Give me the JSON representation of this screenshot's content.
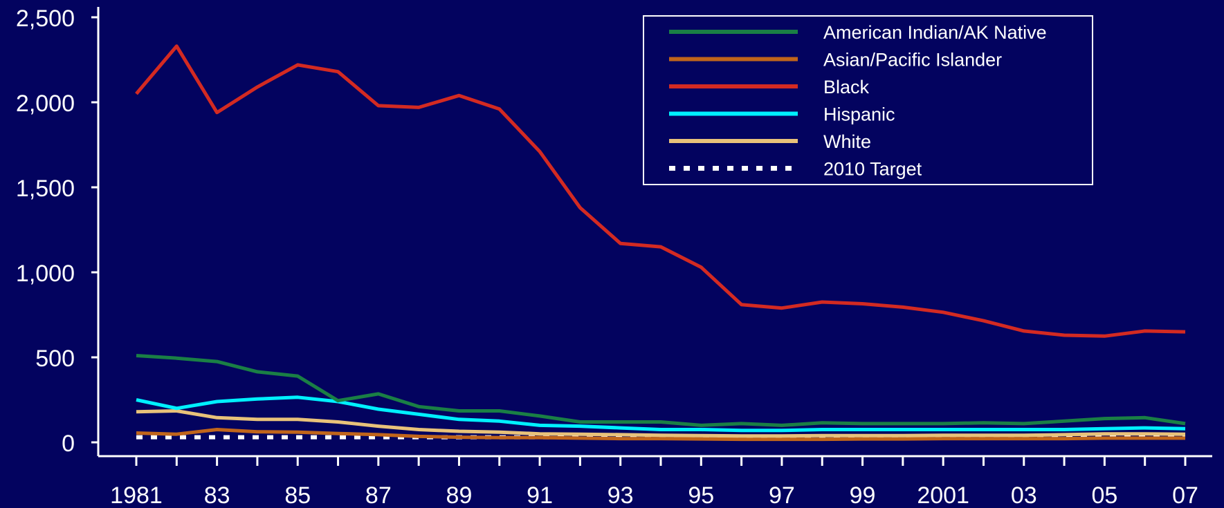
{
  "chart_data": {
    "type": "line",
    "title": "",
    "xlabel": "",
    "ylabel": "",
    "x": [
      1981,
      1982,
      1983,
      1984,
      1985,
      1986,
      1987,
      1988,
      1989,
      1990,
      1991,
      1992,
      1993,
      1994,
      1995,
      1996,
      1997,
      1998,
      1999,
      2000,
      2001,
      2002,
      2003,
      2004,
      2005,
      2006,
      2007
    ],
    "x_tick_labels": [
      "1981",
      "83",
      "85",
      "87",
      "89",
      "91",
      "93",
      "95",
      "97",
      "99",
      "2001",
      "03",
      "05",
      "07"
    ],
    "x_tick_values": [
      1981,
      1983,
      1985,
      1987,
      1989,
      1991,
      1993,
      1995,
      1997,
      1999,
      2001,
      2003,
      2005,
      2007
    ],
    "xlim": [
      1981,
      2007
    ],
    "ylim": [
      0,
      2500
    ],
    "y_ticks": [
      0,
      500,
      1000,
      1500,
      2000,
      2500
    ],
    "y_tick_labels": [
      "0",
      "500",
      "1,000",
      "1,500",
      "2,000",
      "2,500"
    ],
    "grid": false,
    "legend_position": "top-right",
    "series": [
      {
        "name": "American Indian/AK Native",
        "color": "#1a7f45",
        "dash": "solid",
        "values": [
          510,
          495,
          475,
          415,
          390,
          245,
          285,
          210,
          185,
          185,
          155,
          120,
          120,
          120,
          100,
          110,
          100,
          115,
          110,
          110,
          110,
          115,
          110,
          125,
          140,
          145,
          110
        ]
      },
      {
        "name": "Asian/Pacific Islander",
        "color": "#c0651b",
        "dash": "solid",
        "values": [
          55,
          48,
          75,
          62,
          60,
          52,
          45,
          35,
          30,
          28,
          28,
          25,
          22,
          22,
          20,
          18,
          18,
          18,
          20,
          20,
          22,
          22,
          22,
          22,
          25,
          25,
          25
        ]
      },
      {
        "name": "Black",
        "color": "#d32a22",
        "dash": "solid",
        "values": [
          2050,
          2330,
          1940,
          2090,
          2220,
          2180,
          1980,
          1970,
          2040,
          1960,
          1710,
          1380,
          1170,
          1150,
          1030,
          810,
          790,
          825,
          815,
          795,
          765,
          715,
          655,
          630,
          625,
          655,
          650
        ]
      },
      {
        "name": "Hispanic",
        "color": "#00f0ff",
        "dash": "solid",
        "values": [
          250,
          200,
          240,
          255,
          265,
          240,
          195,
          165,
          135,
          125,
          100,
          95,
          85,
          75,
          75,
          70,
          70,
          75,
          75,
          75,
          75,
          75,
          75,
          75,
          80,
          85,
          80
        ]
      },
      {
        "name": "White",
        "color": "#e8c27a",
        "dash": "solid",
        "values": [
          180,
          185,
          145,
          135,
          135,
          120,
          95,
          75,
          65,
          60,
          50,
          48,
          45,
          42,
          40,
          38,
          38,
          40,
          40,
          40,
          42,
          42,
          42,
          45,
          50,
          50,
          48
        ]
      },
      {
        "name": "2010 Target",
        "color": "#ffffff",
        "dash": "dotted",
        "values": [
          30,
          30,
          30,
          30,
          30,
          30,
          30,
          30,
          30,
          30,
          30,
          30,
          30,
          30,
          30,
          30,
          30,
          30,
          30,
          30,
          30,
          30,
          30,
          30,
          30,
          30,
          30
        ]
      }
    ]
  }
}
